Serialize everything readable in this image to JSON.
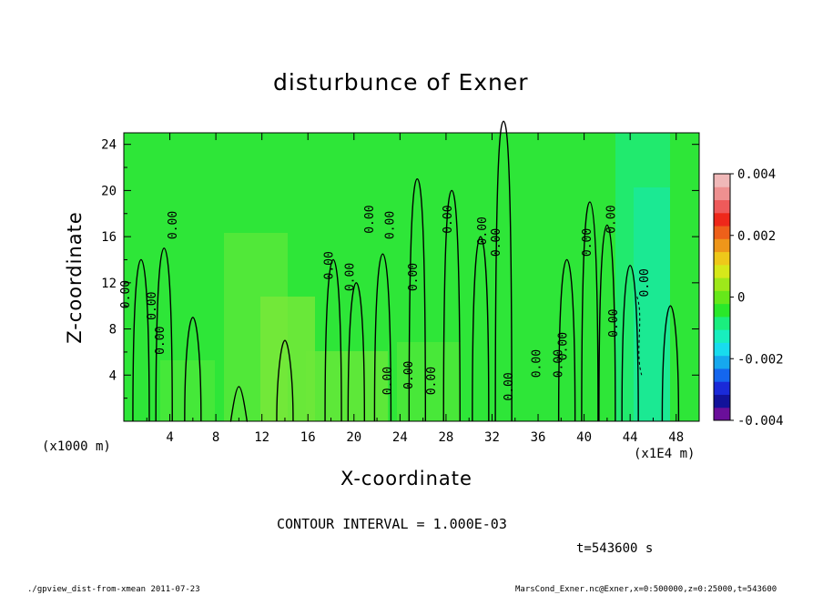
{
  "chart_data": {
    "type": "heatmap",
    "title": "disturbunce of Exner",
    "xlabel": "X-coordinate",
    "ylabel": "Z-coordinate",
    "x_unit_note": "(x1000 m)",
    "x_unit_note_right": "(x1E4 m)",
    "x_ticks": [
      "4",
      "8",
      "12",
      "16",
      "20",
      "24",
      "28",
      "32",
      "36",
      "40",
      "44",
      "48"
    ],
    "y_ticks": [
      "4",
      "8",
      "12",
      "16",
      "20",
      "24"
    ],
    "xlim": [
      0,
      50
    ],
    "ylim": [
      0,
      25
    ],
    "colorbar": {
      "ticks": [
        "0.004",
        "0.002",
        "0",
        "-0.002",
        "-0.004"
      ],
      "range": [
        -0.004,
        0.004
      ],
      "colors": [
        "#6a0f9a",
        "#12129a",
        "#1a2ad8",
        "#1466ee",
        "#16a8ee",
        "#18dcee",
        "#18eebe",
        "#1aee7e",
        "#2ae82a",
        "#66e81a",
        "#9ee81a",
        "#d6e81a",
        "#eec81a",
        "#ee961a",
        "#ee601a",
        "#ee281a",
        "#ee5a5a",
        "#ee9090",
        "#f0b8b8"
      ]
    },
    "contour_interval": "CONTOUR INTERVAL = 1.000E-03",
    "contour_labels": [
      "0.00",
      "0.00",
      "0.00",
      "0.00",
      "0.00",
      "0.00",
      "0.00",
      "0.00",
      "0.00",
      "0.00",
      "0.00",
      "0.00",
      "0.00",
      "0.00",
      "0.00",
      "0.00",
      "0.00",
      "0.00",
      "0.00",
      "0.00",
      "0.00",
      "0.00",
      "0.00"
    ],
    "grid": false
  },
  "annotations": {
    "time": "t=543600 s",
    "footer_left": "./gpview_dist-from-xmean  2011-07-23",
    "footer_right": "MarsCond_Exner.nc@Exner,x=0:500000,z=0:25000,t=543600"
  }
}
